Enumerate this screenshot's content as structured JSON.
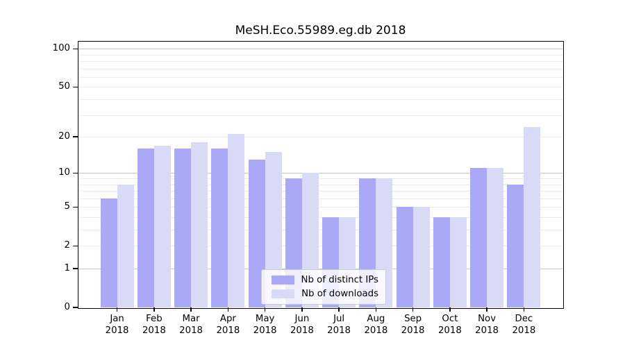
{
  "title": "MeSH.Eco.55989.eg.db 2018",
  "chart_data": {
    "type": "bar",
    "title": "MeSH.Eco.55989.eg.db 2018",
    "scale": "log10(1+v)",
    "categories": [
      "Jan\n2018",
      "Feb\n2018",
      "Mar\n2018",
      "Apr\n2018",
      "May\n2018",
      "Jun\n2018",
      "Jul\n2018",
      "Aug\n2018",
      "Sep\n2018",
      "Oct\n2018",
      "Nov\n2018",
      "Dec\n2018"
    ],
    "series": [
      {
        "name": "Nb of distinct IPs",
        "color": "#a9a9f7",
        "values": [
          6,
          16,
          16,
          16,
          13,
          9,
          4,
          9,
          5,
          4,
          11,
          8
        ]
      },
      {
        "name": "Nb of downloads",
        "color": "#d9d9f8",
        "values": [
          8,
          17,
          18,
          21,
          15,
          10,
          4,
          9,
          5,
          4,
          11,
          24
        ]
      }
    ],
    "xlabel": "",
    "ylabel": "",
    "ylim": [
      0,
      113.6
    ],
    "y_ticks": [
      0,
      1,
      2,
      5,
      10,
      20,
      50,
      100
    ],
    "major_gridlines": [
      1,
      10,
      100
    ],
    "minor_gridlines": [
      2,
      3,
      4,
      5,
      6,
      7,
      8,
      9,
      20,
      30,
      40,
      50,
      60,
      70,
      80,
      90
    ],
    "grid": "both",
    "legend_position": "lower center"
  },
  "colors": {
    "major_grid": "#c6c6c6",
    "minor_grid": "#ebebeb",
    "axis": "#000000",
    "background": "#ffffff"
  }
}
